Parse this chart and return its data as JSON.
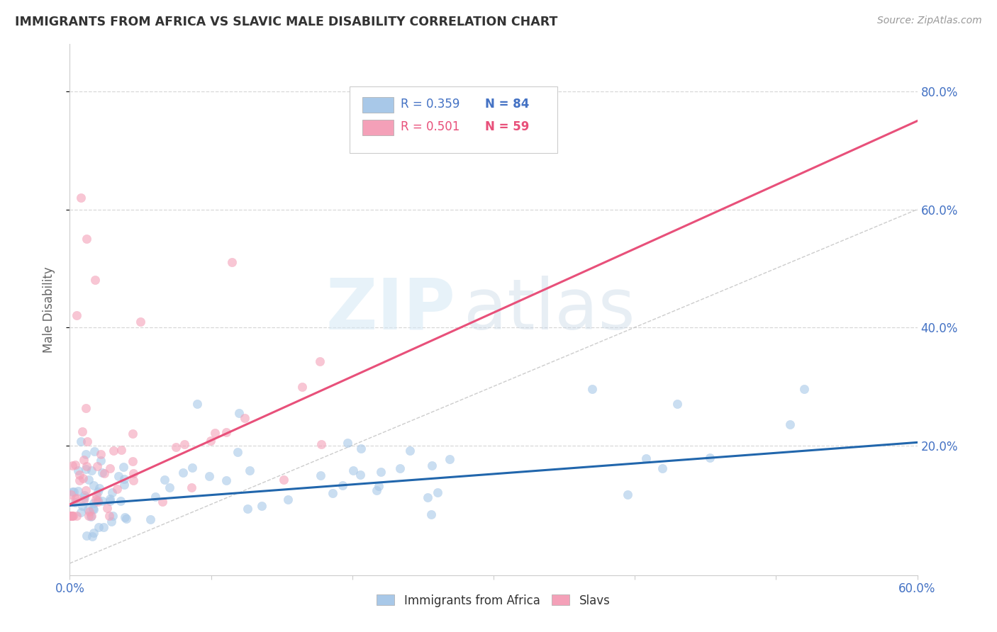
{
  "title": "IMMIGRANTS FROM AFRICA VS SLAVIC MALE DISABILITY CORRELATION CHART",
  "source": "Source: ZipAtlas.com",
  "ylabel": "Male Disability",
  "xlim": [
    0.0,
    0.6
  ],
  "ylim": [
    -0.02,
    0.88
  ],
  "color_blue": "#a8c8e8",
  "color_pink": "#f4a0b8",
  "color_blue_line": "#2166ac",
  "color_pink_line": "#e8507a",
  "color_diag_line": "#c8c8c8",
  "color_axis": "#4472C4",
  "background_color": "#ffffff",
  "grid_color": "#d8d8d8",
  "title_color": "#333333",
  "tick_color": "#4472C4",
  "legend_blue_text": "R = 0.359",
  "legend_blue_n": "N = 84",
  "legend_pink_text": "R = 0.501",
  "legend_pink_n": "N = 59",
  "watermark_zip": "ZIP",
  "watermark_atlas": "atlas"
}
